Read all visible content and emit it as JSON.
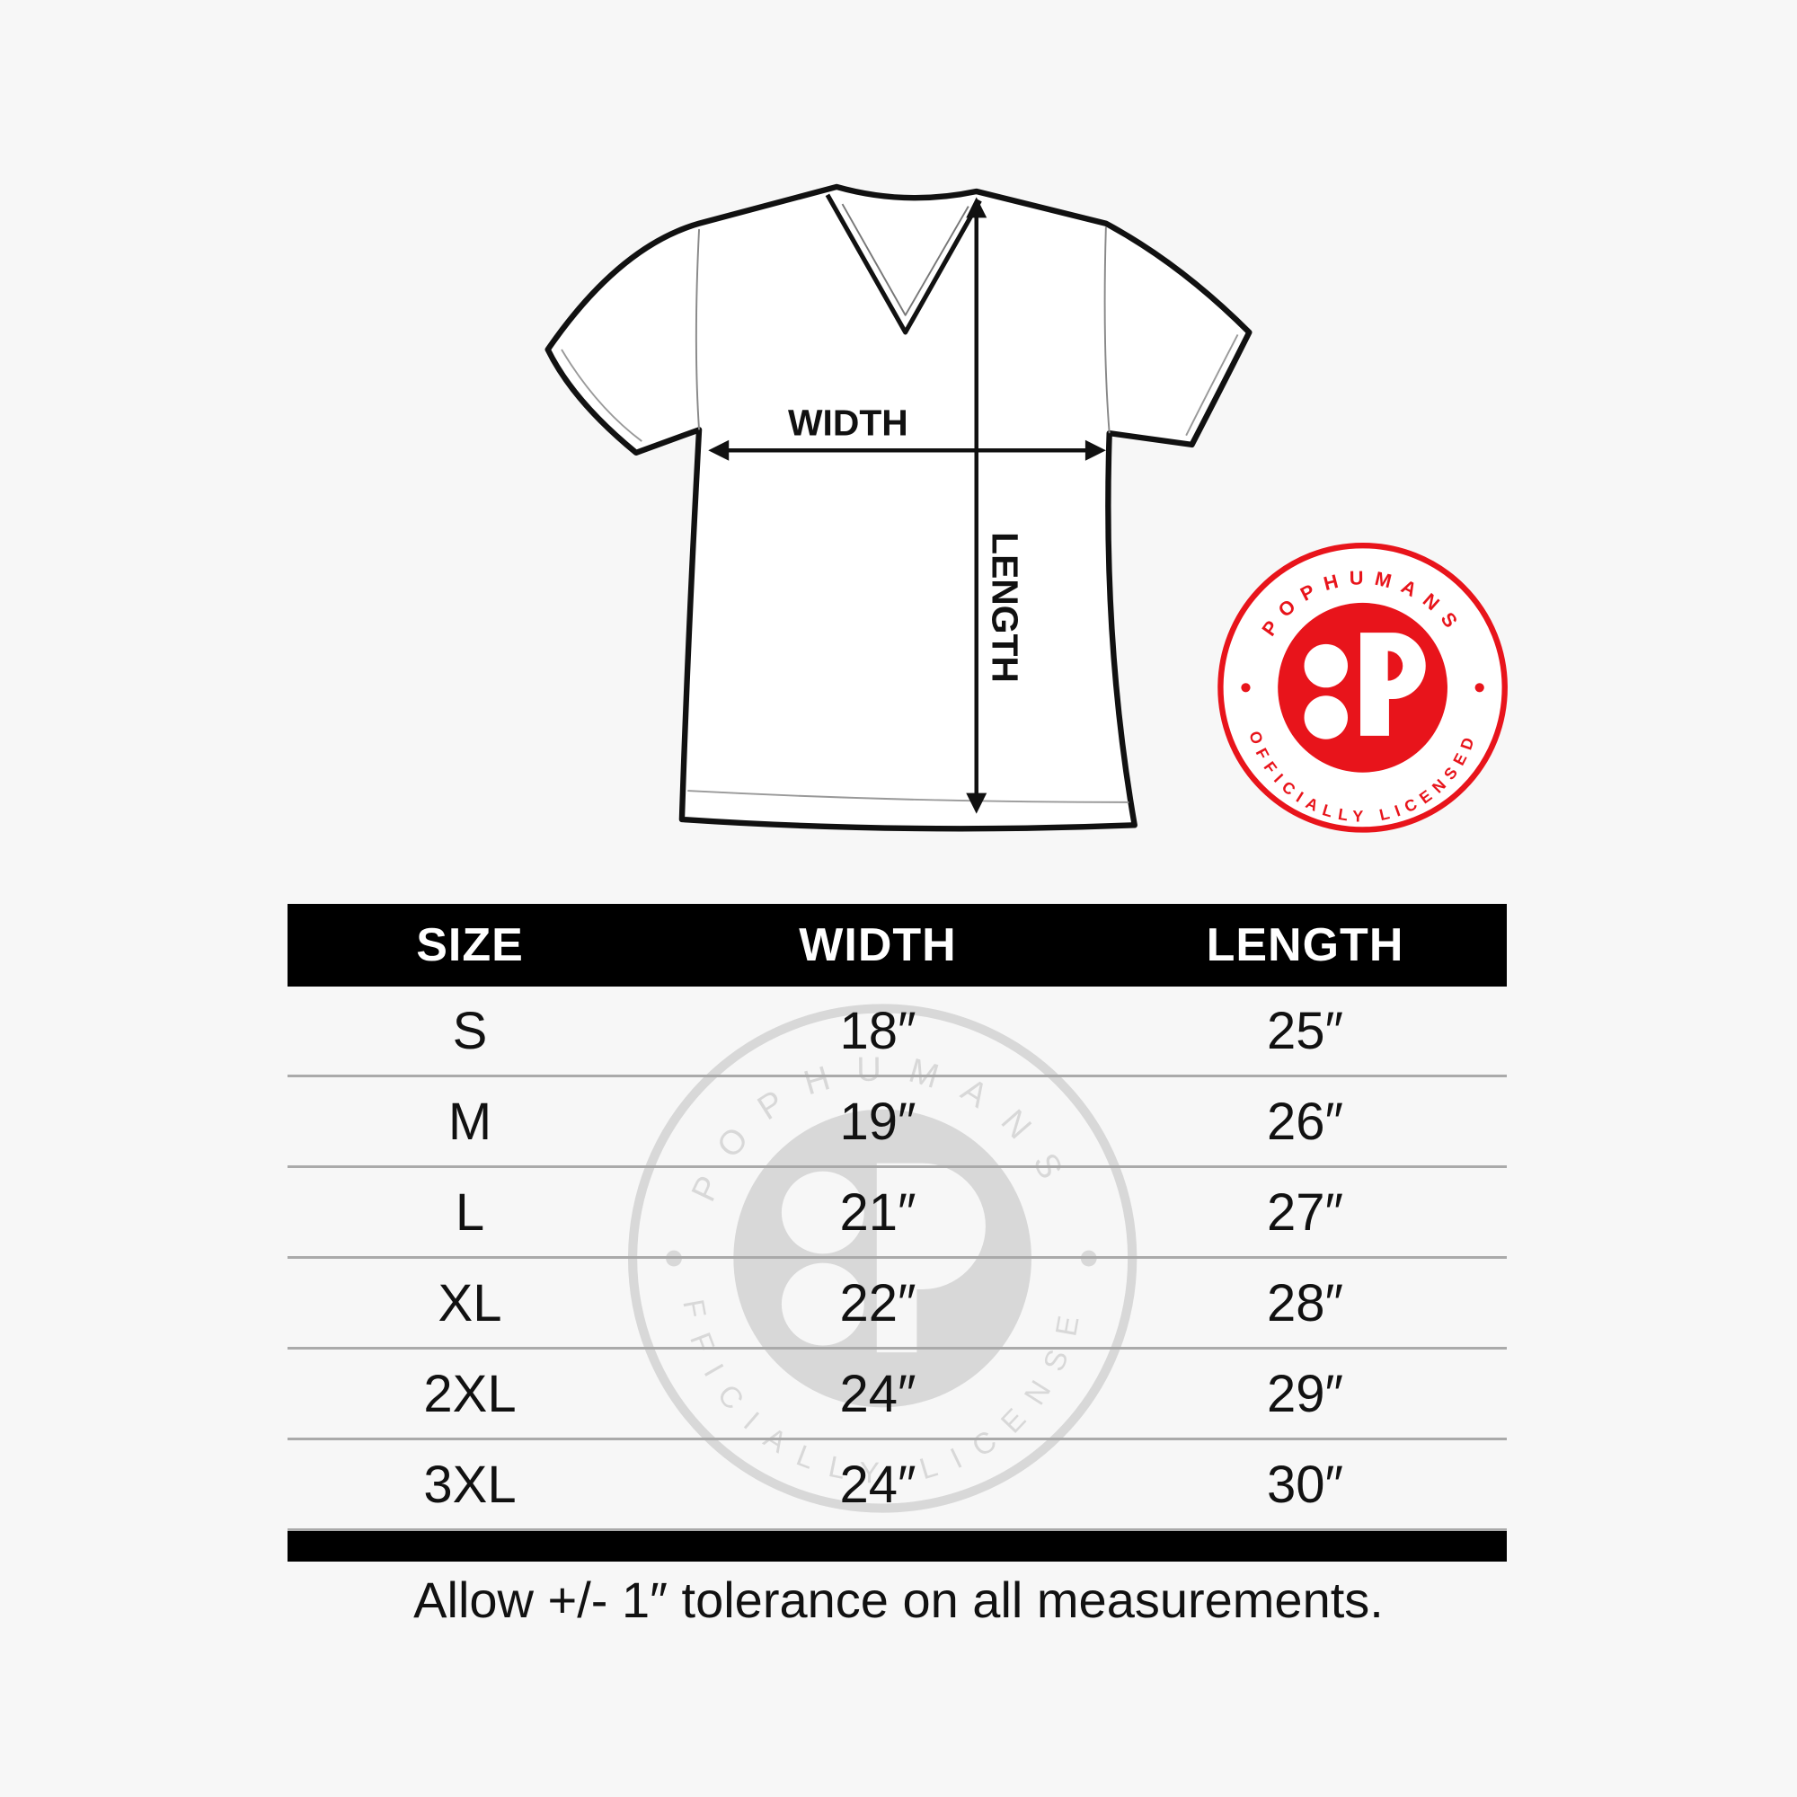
{
  "diagram": {
    "width_label": "WIDTH",
    "length_label": "LENGTH"
  },
  "badge": {
    "brand": "POPHUMANS",
    "subtitle": "OFFICIALLY LICENSED",
    "color": "#e8141b"
  },
  "table": {
    "headers": [
      "SIZE",
      "WIDTH",
      "LENGTH"
    ],
    "rows": [
      [
        "S",
        "18″",
        "25″"
      ],
      [
        "M",
        "19″",
        "26″"
      ],
      [
        "L",
        "21″",
        "27″"
      ],
      [
        "XL",
        "22″",
        "28″"
      ],
      [
        "2XL",
        "24″",
        "29″"
      ],
      [
        "3XL",
        "24″",
        "30″"
      ]
    ]
  },
  "note": "Allow +/- 1″ tolerance on all measurements."
}
